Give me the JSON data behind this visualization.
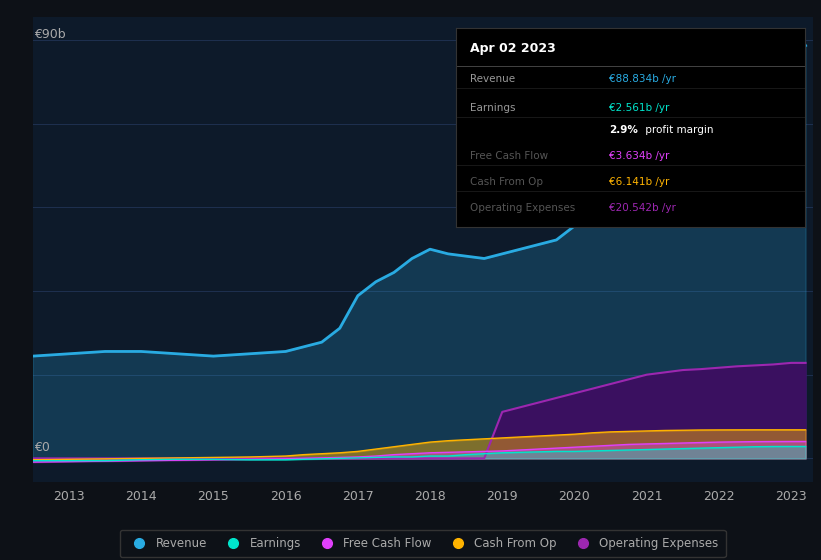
{
  "bg_color": "#0d1117",
  "plot_bg_color": "#0d1a2a",
  "grid_color": "#1e3050",
  "text_color": "#aaaaaa",
  "ylabel_text": "€90b",
  "y0_text": "€0",
  "years_x": [
    2012.5,
    2013,
    2013.5,
    2014,
    2014.5,
    2015,
    2015.5,
    2016,
    2016.25,
    2016.5,
    2016.75,
    2017,
    2017.25,
    2017.5,
    2017.75,
    2018,
    2018.25,
    2018.5,
    2018.75,
    2019,
    2019.25,
    2019.5,
    2019.75,
    2020,
    2020.25,
    2020.5,
    2020.75,
    2021,
    2021.25,
    2021.5,
    2021.75,
    2022,
    2022.25,
    2022.5,
    2022.75,
    2023,
    2023.2
  ],
  "revenue": [
    22,
    22.5,
    23,
    23,
    22.5,
    22,
    22.5,
    23,
    24,
    25,
    28,
    35,
    38,
    40,
    43,
    45,
    44,
    43.5,
    43,
    44,
    45,
    46,
    47,
    50,
    53,
    55,
    57,
    60,
    63,
    66,
    68,
    70,
    72,
    75,
    80,
    87,
    88.8
  ],
  "earnings": [
    -0.5,
    -0.5,
    -0.5,
    -0.3,
    -0.2,
    -0.2,
    -0.3,
    -0.3,
    -0.2,
    -0.1,
    0,
    0.1,
    0.2,
    0.3,
    0.3,
    0.5,
    0.5,
    0.8,
    1.0,
    1.2,
    1.3,
    1.4,
    1.5,
    1.5,
    1.6,
    1.7,
    1.8,
    1.9,
    2.0,
    2.1,
    2.2,
    2.3,
    2.4,
    2.5,
    2.55,
    2.561,
    2.561
  ],
  "free_cash_flow": [
    -0.8,
    -0.7,
    -0.6,
    -0.5,
    -0.4,
    -0.3,
    -0.2,
    -0.1,
    0,
    0.1,
    0.2,
    0.3,
    0.5,
    0.8,
    1.0,
    1.2,
    1.3,
    1.4,
    1.5,
    1.6,
    1.8,
    2.0,
    2.2,
    2.4,
    2.6,
    2.8,
    3.0,
    3.1,
    3.2,
    3.3,
    3.4,
    3.5,
    3.55,
    3.6,
    3.62,
    3.634,
    3.634
  ],
  "cash_from_op": [
    -0.3,
    -0.2,
    -0.1,
    0,
    0.1,
    0.2,
    0.3,
    0.5,
    0.8,
    1.0,
    1.2,
    1.5,
    2.0,
    2.5,
    3.0,
    3.5,
    3.8,
    4.0,
    4.2,
    4.4,
    4.6,
    4.8,
    5.0,
    5.2,
    5.5,
    5.7,
    5.8,
    5.9,
    6.0,
    6.05,
    6.1,
    6.12,
    6.13,
    6.14,
    6.141,
    6.141,
    6.141
  ],
  "operating_expenses": [
    0,
    0,
    0,
    0,
    0,
    0,
    0,
    0,
    0,
    0,
    0,
    0,
    0,
    0,
    0,
    0,
    0,
    0,
    0,
    10,
    11,
    12,
    13,
    14,
    15,
    16,
    17,
    18,
    18.5,
    19,
    19.2,
    19.5,
    19.8,
    20,
    20.2,
    20.542,
    20.542
  ],
  "revenue_color": "#29abe2",
  "earnings_color": "#00e5cc",
  "free_cash_flow_color": "#e040fb",
  "cash_from_op_color": "#ffb300",
  "operating_expenses_color": "#9c27b0",
  "operating_expenses_fill": "#3a1060",
  "tooltip_title": "Apr 02 2023",
  "tooltip_rows": [
    {
      "label": "Revenue",
      "value": "€88.834b /yr",
      "color": "#29abe2",
      "dimmed": false
    },
    {
      "label": "Earnings",
      "value": "€2.561b /yr",
      "color": "#00e5cc",
      "dimmed": false
    },
    {
      "label": "",
      "value": "2.9% profit margin",
      "color": "white",
      "dimmed": false
    },
    {
      "label": "Free Cash Flow",
      "value": "€3.634b /yr",
      "color": "#e040fb",
      "dimmed": true
    },
    {
      "label": "Cash From Op",
      "value": "€6.141b /yr",
      "color": "#ffb300",
      "dimmed": true
    },
    {
      "label": "Operating Expenses",
      "value": "€20.542b /yr",
      "color": "#9c27b0",
      "dimmed": true
    }
  ],
  "xtick_labels": [
    "2013",
    "2014",
    "2015",
    "2016",
    "2017",
    "2018",
    "2019",
    "2020",
    "2021",
    "2022",
    "2023"
  ],
  "xtick_positions": [
    2013,
    2014,
    2015,
    2016,
    2017,
    2018,
    2019,
    2020,
    2021,
    2022,
    2023
  ],
  "legend_labels": [
    "Revenue",
    "Earnings",
    "Free Cash Flow",
    "Cash From Op",
    "Operating Expenses"
  ],
  "legend_colors": [
    "#29abe2",
    "#00e5cc",
    "#e040fb",
    "#ffb300",
    "#9c27b0"
  ]
}
